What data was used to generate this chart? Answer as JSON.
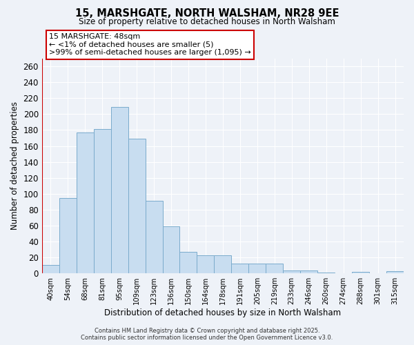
{
  "title": "15, MARSHGATE, NORTH WALSHAM, NR28 9EE",
  "subtitle": "Size of property relative to detached houses in North Walsham",
  "xlabel": "Distribution of detached houses by size in North Walsham",
  "ylabel": "Number of detached properties",
  "bar_color": "#c8ddf0",
  "bar_edge_color": "#7aabcc",
  "highlight_color": "#cc0000",
  "background_color": "#eef2f8",
  "grid_color": "#ffffff",
  "categories": [
    "40sqm",
    "54sqm",
    "68sqm",
    "81sqm",
    "95sqm",
    "109sqm",
    "123sqm",
    "136sqm",
    "150sqm",
    "164sqm",
    "178sqm",
    "191sqm",
    "205sqm",
    "219sqm",
    "233sqm",
    "246sqm",
    "260sqm",
    "274sqm",
    "288sqm",
    "301sqm",
    "315sqm"
  ],
  "values": [
    11,
    95,
    177,
    181,
    209,
    169,
    91,
    59,
    27,
    23,
    23,
    12,
    12,
    12,
    4,
    4,
    1,
    0,
    2,
    0,
    3
  ],
  "annotation_title": "15 MARSHGATE: 48sqm",
  "annotation_line1": "← <1% of detached houses are smaller (5)",
  "annotation_line2": ">99% of semi-detached houses are larger (1,095) →",
  "ylim": [
    0,
    270
  ],
  "yticks": [
    0,
    20,
    40,
    60,
    80,
    100,
    120,
    140,
    160,
    180,
    200,
    220,
    240,
    260
  ],
  "footer1": "Contains HM Land Registry data © Crown copyright and database right 2025.",
  "footer2": "Contains public sector information licensed under the Open Government Licence v3.0."
}
